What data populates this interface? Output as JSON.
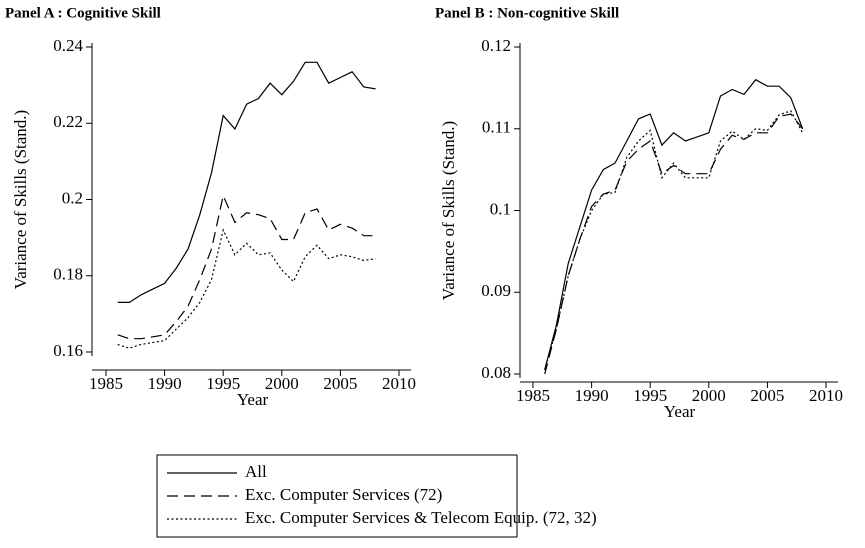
{
  "chart_data": [
    {
      "type": "line",
      "title": "Panel A : Cognitive Skill",
      "x_label": "Year",
      "y_label": "Variance of Skills (Stand.)",
      "x": [
        1986,
        1987,
        1988,
        1989,
        1990,
        1991,
        1992,
        1993,
        1994,
        1995,
        1996,
        1997,
        1998,
        1999,
        2000,
        2001,
        2002,
        2003,
        2004,
        2005,
        2006,
        2007,
        2008
      ],
      "xlim": [
        1985,
        2010
      ],
      "xticks": [
        1985,
        1990,
        1995,
        2000,
        2005,
        2010
      ],
      "ylim": [
        0.16,
        0.24
      ],
      "yticks": [
        0.16,
        0.18,
        0.2,
        0.22,
        0.24
      ],
      "series": [
        {
          "name": "All",
          "color": "#000000",
          "dash": "solid",
          "values": [
            0.173,
            0.173,
            0.175,
            0.1765,
            0.178,
            0.182,
            0.187,
            0.196,
            0.207,
            0.222,
            0.2185,
            0.225,
            0.2265,
            0.2305,
            0.2275,
            0.231,
            0.236,
            0.236,
            0.2305,
            0.232,
            0.2335,
            0.2295,
            0.229
          ]
        },
        {
          "name": "Exc. Computer Services (72)",
          "color": "#000000",
          "dash": "dashed",
          "values": [
            0.1645,
            0.1635,
            0.1635,
            0.164,
            0.1645,
            0.168,
            0.172,
            0.179,
            0.187,
            0.201,
            0.194,
            0.1965,
            0.196,
            0.195,
            0.1895,
            0.1895,
            0.1965,
            0.1975,
            0.192,
            0.1935,
            0.1925,
            0.1905,
            0.1905
          ]
        },
        {
          "name": "Exc. Computer Services & Telecom Equip. (72, 32)",
          "color": "#000000",
          "dash": "dotted",
          "values": [
            0.162,
            0.161,
            0.162,
            0.1625,
            0.163,
            0.166,
            0.169,
            0.173,
            0.179,
            0.192,
            0.1855,
            0.1885,
            0.1855,
            0.186,
            0.1815,
            0.1785,
            0.185,
            0.188,
            0.1845,
            0.1855,
            0.185,
            0.184,
            0.1845
          ]
        }
      ]
    },
    {
      "type": "line",
      "title": "Panel B : Non-cognitive Skill",
      "x_label": "Year",
      "y_label": "Variance of Skills (Stand.)",
      "x": [
        1986,
        1987,
        1988,
        1989,
        1990,
        1991,
        1992,
        1993,
        1994,
        1995,
        1996,
        1997,
        1998,
        1999,
        2000,
        2001,
        2002,
        2003,
        2004,
        2005,
        2006,
        2007,
        2008
      ],
      "xlim": [
        1985,
        2010
      ],
      "xticks": [
        1985,
        1990,
        1995,
        2000,
        2005,
        2010
      ],
      "ylim": [
        0.08,
        0.12
      ],
      "yticks": [
        0.08,
        0.09,
        0.1,
        0.11,
        0.12
      ],
      "series": [
        {
          "color": "#000000",
          "dash": "solid",
          "values": [
            0.0805,
            0.086,
            0.0935,
            0.098,
            0.1025,
            0.105,
            0.1058,
            0.1085,
            0.1112,
            0.1118,
            0.108,
            0.1095,
            0.1085,
            0.109,
            0.1095,
            0.114,
            0.1148,
            0.1142,
            0.116,
            0.1152,
            0.1152,
            0.1138,
            0.11
          ]
        },
        {
          "color": "#000000",
          "dash": "dashed",
          "values": [
            0.08,
            0.0855,
            0.092,
            0.0965,
            0.1005,
            0.102,
            0.1025,
            0.106,
            0.1075,
            0.1085,
            0.1045,
            0.1055,
            0.1045,
            0.1045,
            0.1045,
            0.1075,
            0.1092,
            0.1087,
            0.1095,
            0.1095,
            0.1115,
            0.1118,
            0.11
          ]
        },
        {
          "color": "#000000",
          "dash": "dotted",
          "values": [
            0.0805,
            0.0855,
            0.092,
            0.0965,
            0.1,
            0.102,
            0.1022,
            0.1065,
            0.1085,
            0.1098,
            0.104,
            0.1058,
            0.104,
            0.104,
            0.104,
            0.1085,
            0.1097,
            0.1087,
            0.11,
            0.1098,
            0.1117,
            0.1122,
            0.1095
          ]
        }
      ]
    }
  ]
}
